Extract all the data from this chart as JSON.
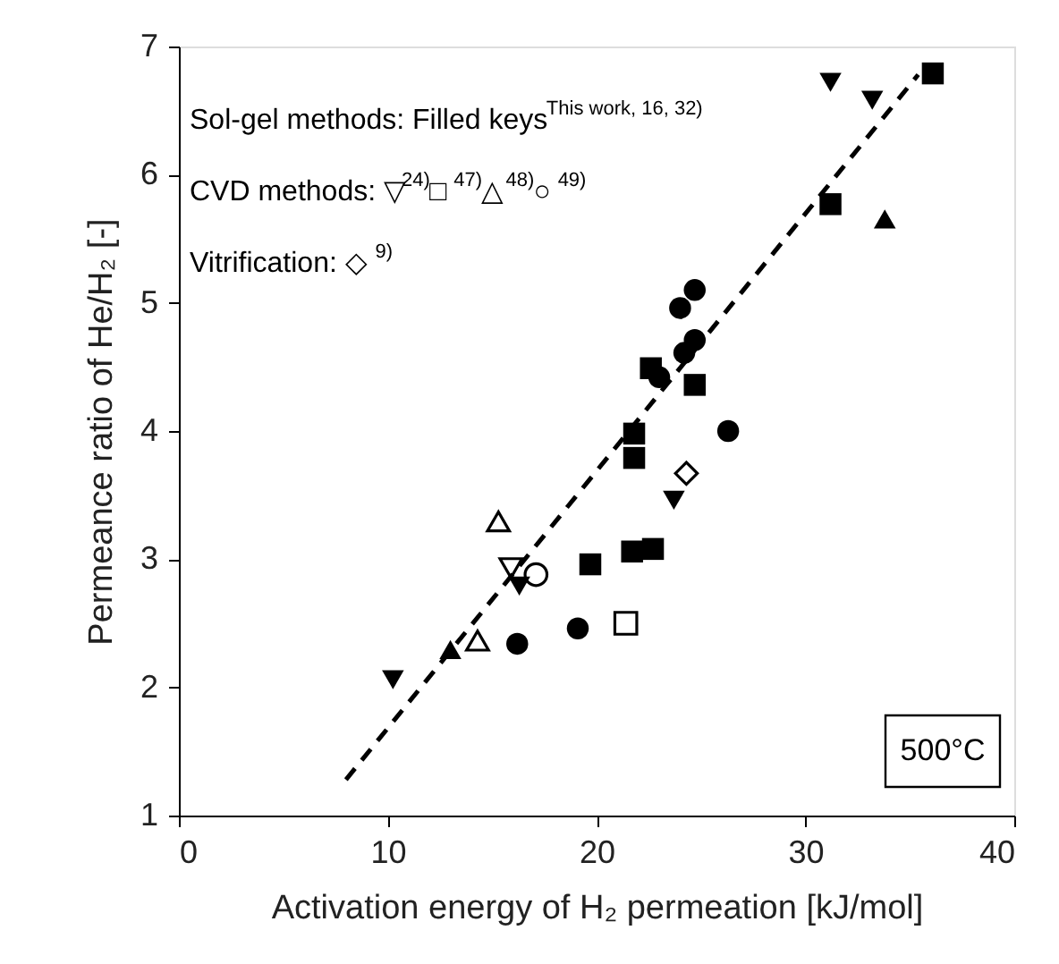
{
  "chart_data": {
    "type": "scatter",
    "xlabel": "Activation energy of H₂ permeation [kJ/mol]",
    "ylabel": "Permeance ratio of He/H₂  [-]",
    "xlim": [
      0,
      40
    ],
    "xticks": [
      0,
      10,
      20,
      30,
      40
    ],
    "ylim": [
      1,
      7
    ],
    "yticks": [
      1,
      2,
      3,
      4,
      5,
      6,
      7
    ],
    "grid": false,
    "annotations": [
      "Sol-gel methods: Filled keys$^{This work, 16, 32)}$",
      "CVD methods: ▽$^{24)}$□$^{47)}$△$^{48)}$○$^{49)}$",
      "Vitrification:  ◇$^{9)}$",
      "500°C"
    ],
    "series": [
      {
        "marker": "triangle-down",
        "color": "#000000",
        "x": [
          10.25,
          16.3,
          23.7,
          31.2,
          33.2
        ],
        "values": [
          2.06,
          2.79,
          3.46,
          6.72,
          6.58
        ]
      },
      {
        "marker": "square",
        "color": "#000000",
        "x": [
          36.1,
          31.2,
          22.6,
          24.7,
          21.8,
          21.8,
          19.7,
          21.7,
          22.7
        ],
        "values": [
          6.79,
          5.77,
          4.49,
          4.36,
          3.98,
          3.79,
          2.96,
          3.06,
          3.08
        ]
      },
      {
        "marker": "circle",
        "color": "#000000",
        "x": [
          24.7,
          24.0,
          24.7,
          24.2,
          23.0,
          26.3,
          19.1,
          16.2
        ],
        "values": [
          5.1,
          4.96,
          4.71,
          4.61,
          4.42,
          4.0,
          2.46,
          2.34
        ]
      },
      {
        "marker": "triangle",
        "color": "#000000",
        "x": [
          13.0,
          33.8
        ],
        "values": [
          2.27,
          5.63
        ]
      },
      {
        "marker": "triangle-down-open",
        "color": "#000000",
        "x": [
          15.9
        ],
        "values": [
          2.93
        ]
      },
      {
        "marker": "square-open",
        "color": "#000000",
        "x": [
          21.4
        ],
        "values": [
          2.5
        ]
      },
      {
        "marker": "triangle-open",
        "color": "#000000",
        "x": [
          15.3,
          14.3
        ],
        "values": [
          3.27,
          2.34
        ]
      },
      {
        "marker": "circle-open",
        "color": "#000000",
        "x": [
          17.1
        ],
        "values": [
          2.88
        ]
      },
      {
        "marker": "diamond-open",
        "color": "#000000",
        "x": [
          24.3
        ],
        "values": [
          3.67
        ]
      },
      {
        "type": "line",
        "marker": "none",
        "line_style": "dashed",
        "color": "#000000",
        "x": [
          8.0,
          35.4
        ],
        "values": [
          1.28,
          6.78
        ]
      }
    ]
  }
}
